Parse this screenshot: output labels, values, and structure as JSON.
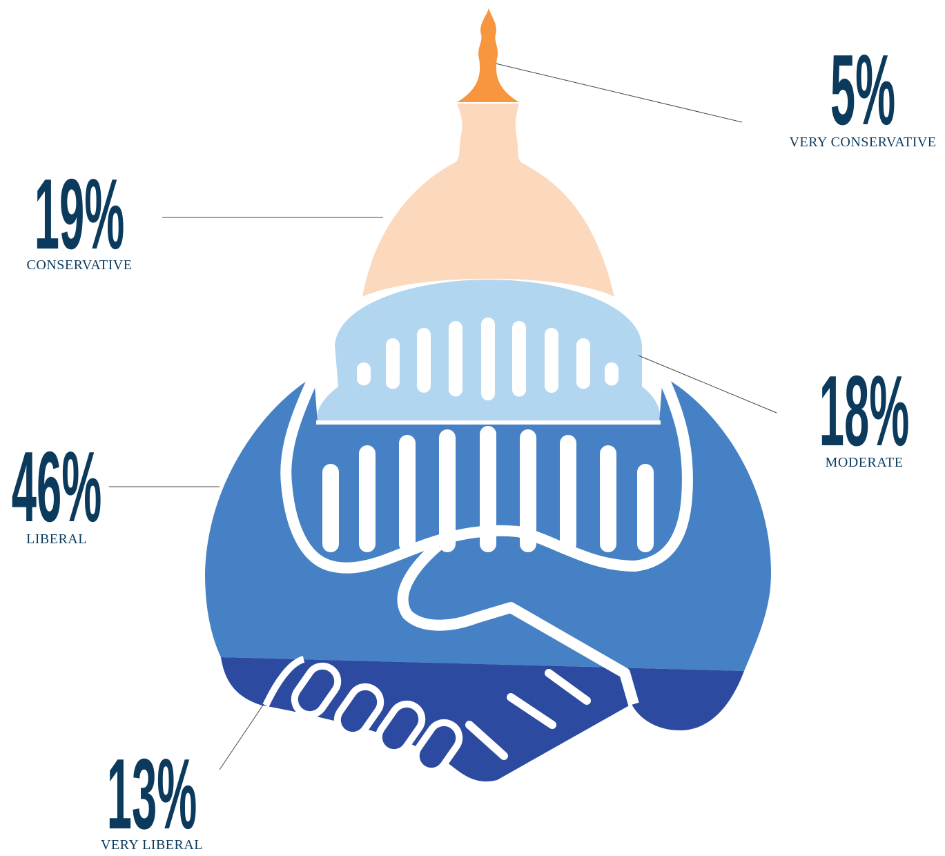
{
  "chart_data": {
    "type": "pictogram",
    "categories": [
      "VERY CONSERVATIVE",
      "CONSERVATIVE",
      "MODERATE",
      "LIBERAL",
      "VERY LIBERAL"
    ],
    "values": [
      5,
      19,
      18,
      46,
      13
    ],
    "value_labels": [
      "5%",
      "19%",
      "18%",
      "46%",
      "13%"
    ],
    "colors": [
      "#f7963f",
      "#fcd8bd",
      "#b3d6f0",
      "#4581c4",
      "#2c4a9f"
    ]
  }
}
